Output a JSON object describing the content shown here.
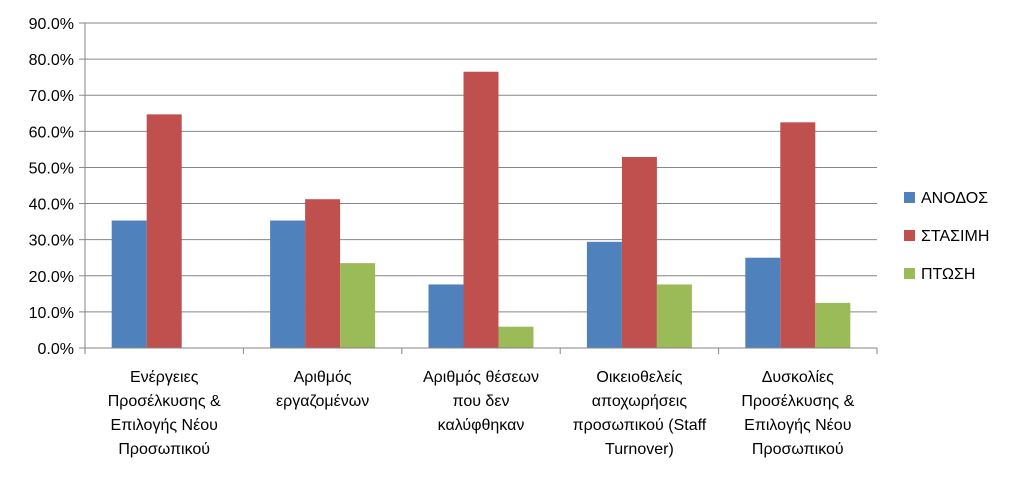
{
  "chart_data": {
    "type": "bar",
    "categories": [
      [
        "Ενέργειες",
        "Προσέλκυσης &",
        "Επιλογής Νέου",
        "Προσωπικού"
      ],
      [
        "Αριθμός",
        "εργαζομένων"
      ],
      [
        "Αριθμός θέσεων",
        "που δεν",
        "καλύφθηκαν"
      ],
      [
        "Οικειοθελείς",
        "αποχωρήσεις",
        "προσωπικού (Staff",
        "Turnover)"
      ],
      [
        "Δυσκολίες",
        "Προσέλκυσης &",
        "Επιλογής Νέου",
        "Προσωπικού"
      ]
    ],
    "series": [
      {
        "name": "ΑΝΟΔΟΣ",
        "color": "#4F81BD",
        "values": [
          35.3,
          35.3,
          17.6,
          29.4,
          25.0
        ]
      },
      {
        "name": "ΣΤΑΣΙΜΗ",
        "color": "#C0504D",
        "values": [
          64.7,
          41.2,
          76.5,
          52.9,
          62.5
        ]
      },
      {
        "name": "ΠΤΩΣΗ",
        "color": "#9BBB59",
        "values": [
          0.0,
          23.5,
          5.9,
          17.6,
          12.5
        ]
      }
    ],
    "yticks": [
      "0.0%",
      "10.0%",
      "20.0%",
      "30.0%",
      "40.0%",
      "50.0%",
      "60.0%",
      "70.0%",
      "80.0%",
      "90.0%"
    ],
    "ylim": [
      0,
      90
    ],
    "ystep": 10,
    "grid": true,
    "legend_position": "right",
    "title": "",
    "xlabel": "",
    "ylabel": ""
  }
}
